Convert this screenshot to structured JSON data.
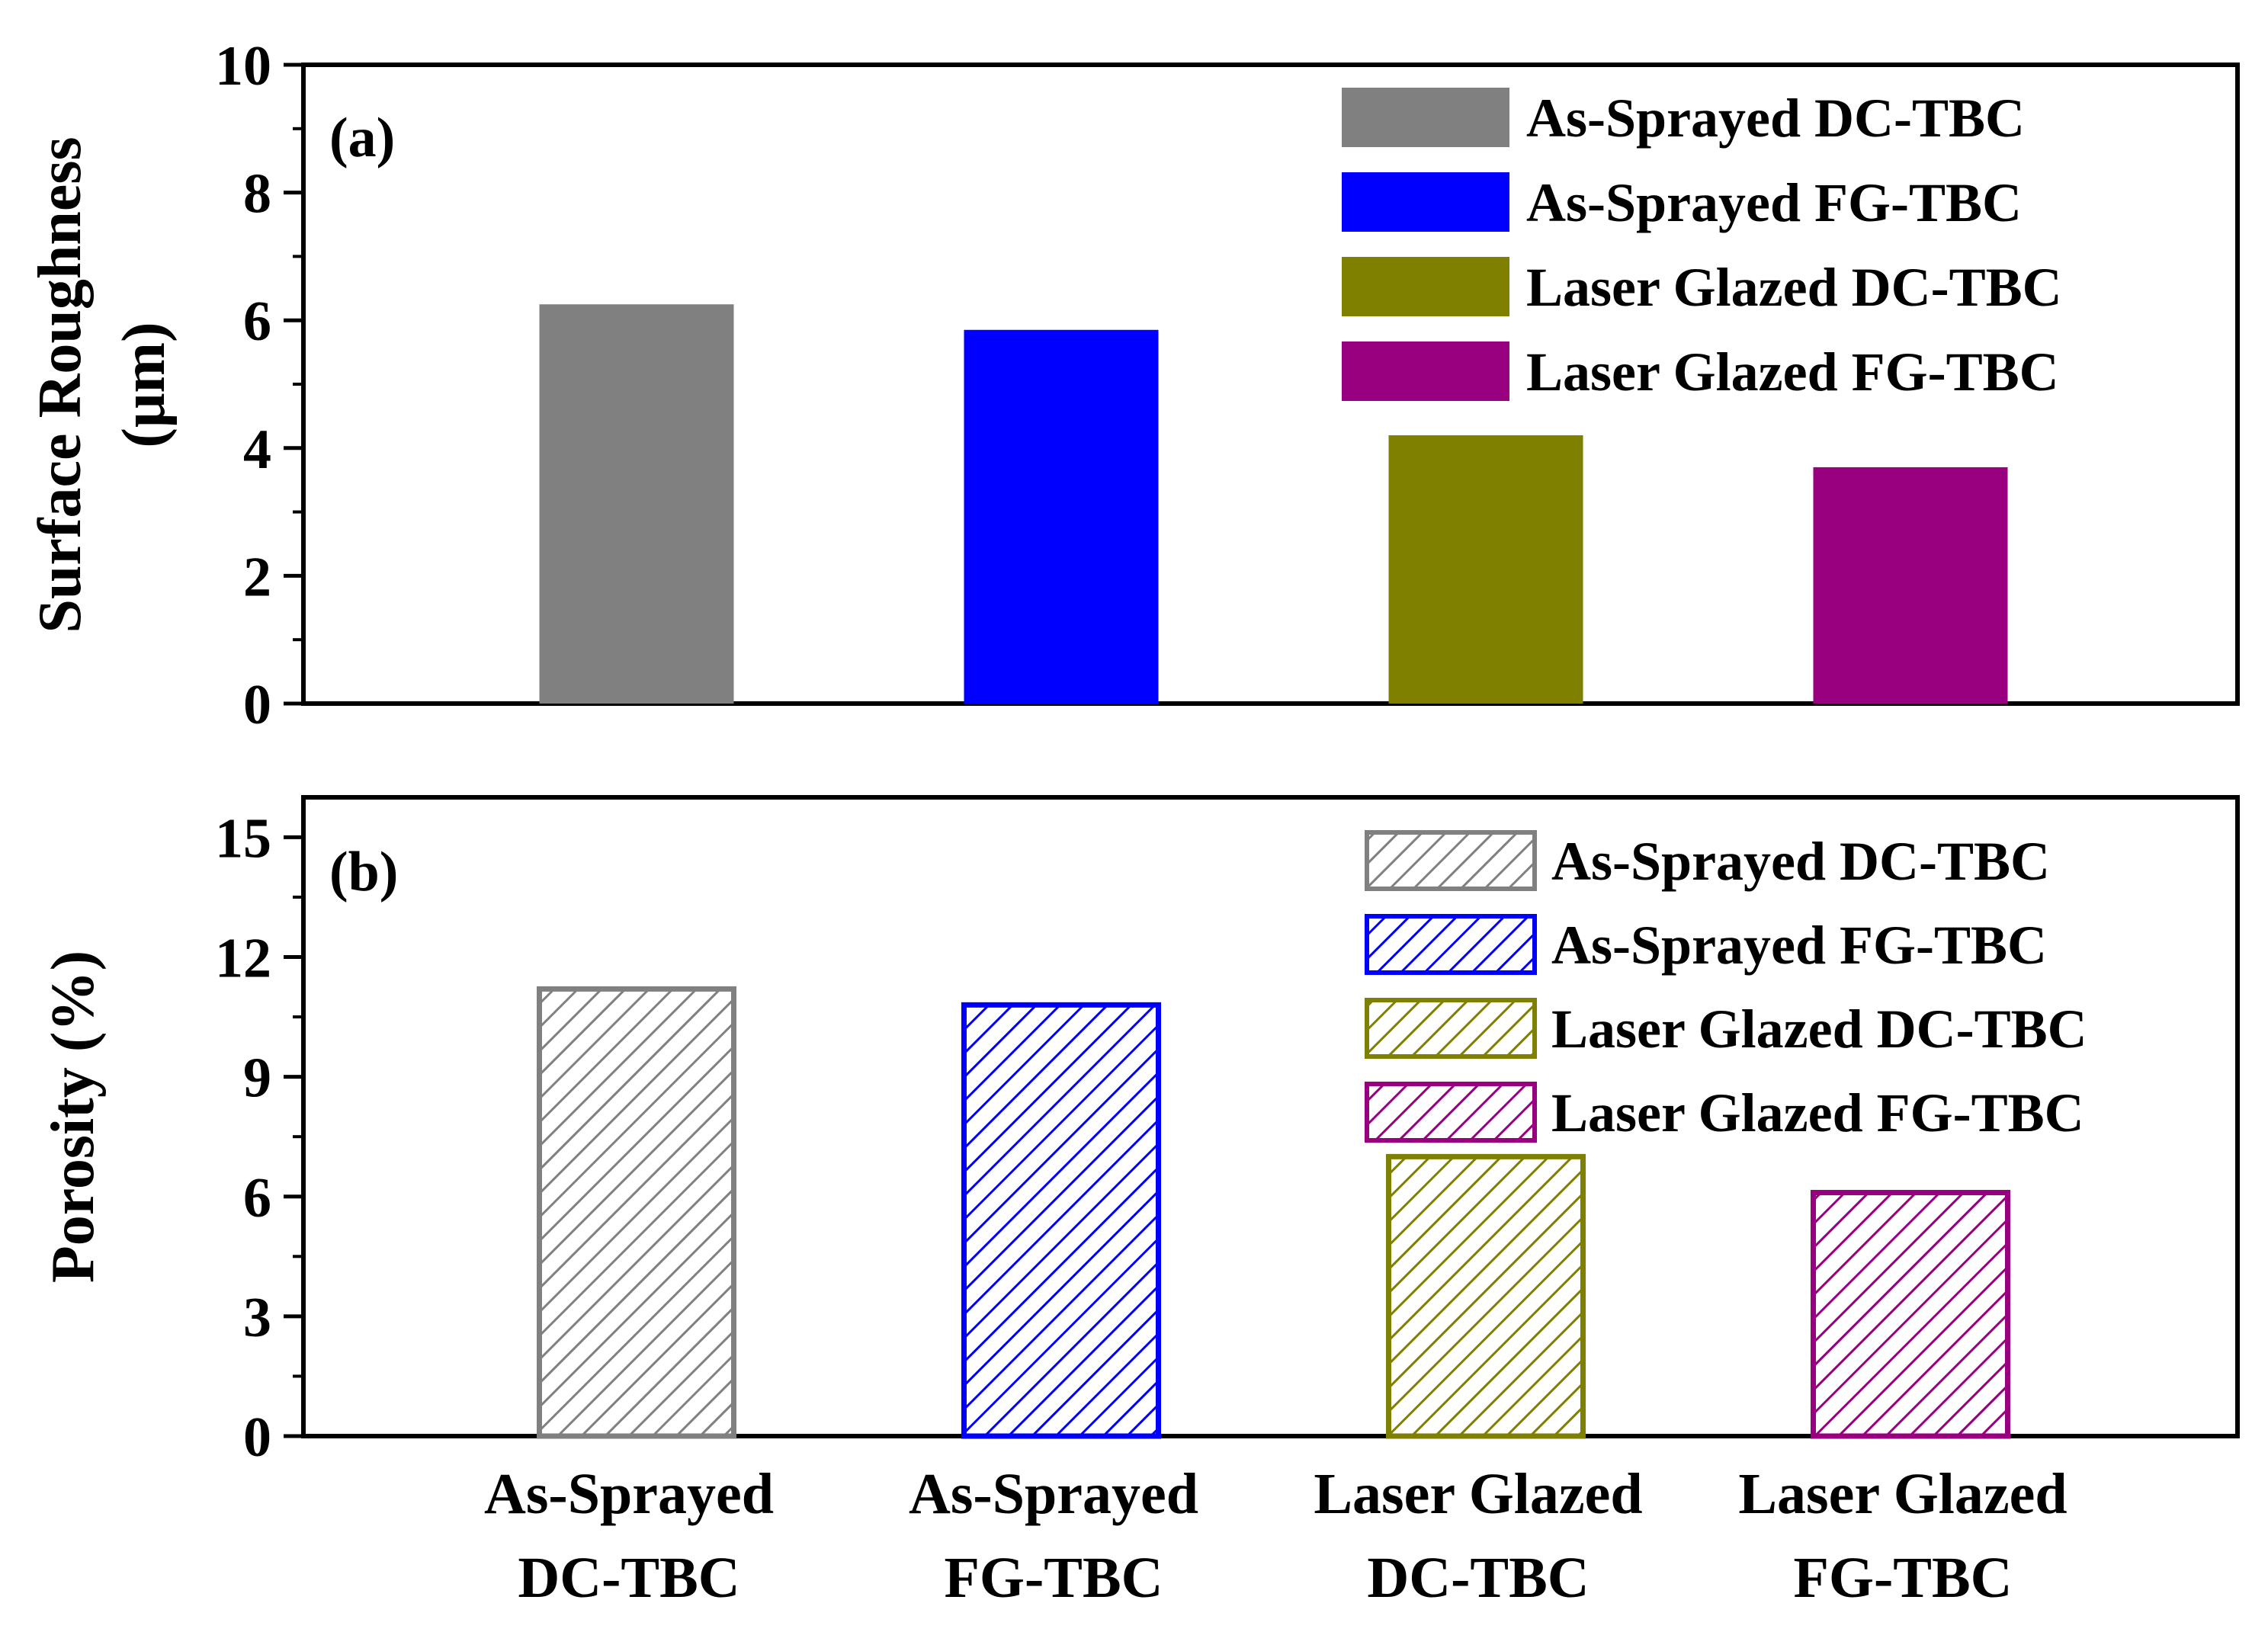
{
  "chart_data": [
    {
      "type": "bar",
      "panel_label": "(a)",
      "ylabel_lines": [
        "Surface Roughness",
        "(μm)"
      ],
      "ylim": [
        0,
        10
      ],
      "yticks": [
        "0",
        "2",
        "4",
        "6",
        "8",
        "10"
      ],
      "ytick_values": [
        0,
        2,
        4,
        6,
        8,
        10
      ],
      "categories": [
        "As-Sprayed DC-TBC",
        "As-Sprayed FG-TBC",
        "Laser Glazed DC-TBC",
        "Laser Glazed FG-TBC"
      ],
      "values": [
        6.25,
        5.85,
        4.2,
        3.7
      ],
      "colors": [
        "#808080",
        "#0000ff",
        "#7f7f00",
        "#990080"
      ],
      "legend": [
        "As-Sprayed DC-TBC",
        "As-Sprayed FG-TBC",
        "Laser Glazed DC-TBC",
        "Laser Glazed FG-TBC"
      ],
      "legend_position": "top-right",
      "fill": "solid"
    },
    {
      "type": "bar",
      "panel_label": "(b)",
      "ylabel_lines": [
        "Porosity (%)"
      ],
      "ylim": [
        0,
        16
      ],
      "yticks": [
        "0",
        "3",
        "6",
        "9",
        "12",
        "15"
      ],
      "ytick_values": [
        0,
        3,
        6,
        9,
        12,
        15
      ],
      "categories": [
        "As-Sprayed DC-TBC",
        "As-Sprayed FG-TBC",
        "Laser Glazed DC-TBC",
        "Laser Glazed FG-TBC"
      ],
      "xtick_lines": [
        [
          "As-Sprayed",
          "DC-TBC"
        ],
        [
          "As-Sprayed",
          "FG-TBC"
        ],
        [
          "Laser Glazed",
          "DC-TBC"
        ],
        [
          "Laser Glazed",
          "FG-TBC"
        ]
      ],
      "values": [
        11.2,
        10.8,
        7.0,
        6.1
      ],
      "colors": [
        "#808080",
        "#0000ff",
        "#7f7f00",
        "#990080"
      ],
      "legend": [
        "As-Sprayed DC-TBC",
        "As-Sprayed FG-TBC",
        "Laser Glazed DC-TBC",
        "Laser Glazed FG-TBC"
      ],
      "legend_position": "top-right",
      "fill": "hatched"
    }
  ]
}
